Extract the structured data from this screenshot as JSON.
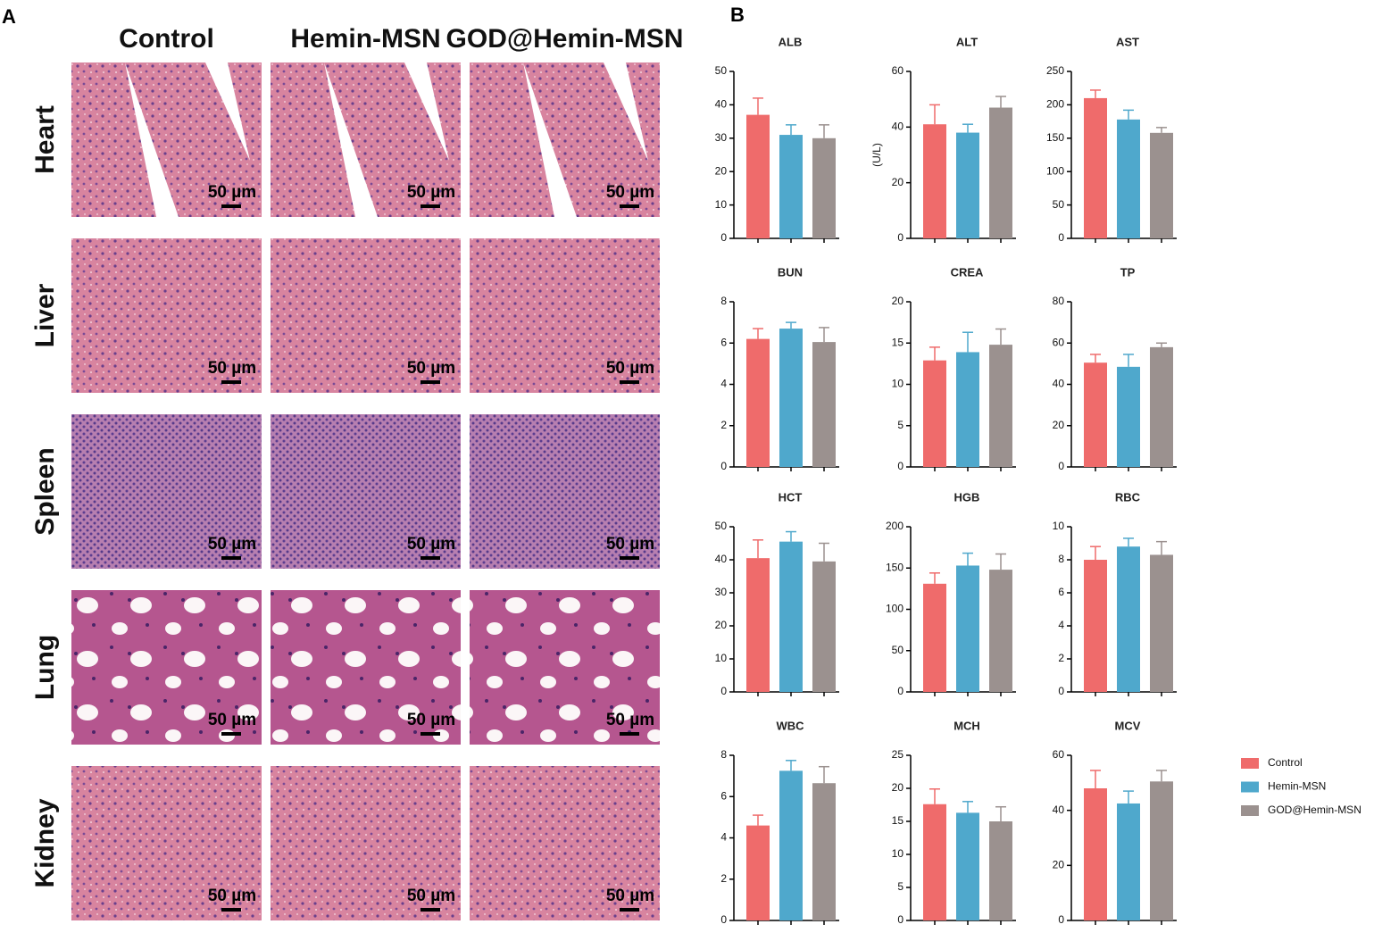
{
  "panels": [
    "A",
    "B"
  ],
  "histology": {
    "columns": [
      "Control",
      "Hemin-MSN",
      "GOD@Hemin-MSN"
    ],
    "rows": [
      "Heart",
      "Liver",
      "Spleen",
      "Lung",
      "Kidney"
    ],
    "scale_bar": "50 µm"
  },
  "legend": [
    {
      "name": "Control",
      "color": "#ef6b6b"
    },
    {
      "name": "Hemin-MSN",
      "color": "#4fa8cc"
    },
    {
      "name": "GOD@Hemin-MSN",
      "color": "#9b918f"
    }
  ],
  "chart_data": [
    {
      "type": "bar",
      "title": "ALB",
      "values": [
        37,
        31,
        30
      ],
      "errors": [
        5,
        3,
        4
      ],
      "ylim": [
        0,
        50
      ],
      "yticks": [
        0,
        10,
        20,
        30,
        40,
        50
      ]
    },
    {
      "type": "bar",
      "title": "ALT",
      "ylabel": "(U/L)",
      "values": [
        41,
        38,
        47
      ],
      "errors": [
        7,
        3,
        4
      ],
      "ylim": [
        0,
        60
      ],
      "yticks": [
        0,
        20,
        40,
        60
      ]
    },
    {
      "type": "bar",
      "title": "AST",
      "values": [
        210,
        178,
        158
      ],
      "errors": [
        12,
        14,
        8
      ],
      "ylim": [
        0,
        250
      ],
      "yticks": [
        0,
        50,
        100,
        150,
        200,
        250
      ]
    },
    {
      "type": "bar",
      "title": "BUN",
      "values": [
        6.2,
        6.7,
        6.05
      ],
      "errors": [
        0.5,
        0.3,
        0.7
      ],
      "ylim": [
        0,
        8
      ],
      "yticks": [
        0,
        2,
        4,
        6,
        8
      ]
    },
    {
      "type": "bar",
      "title": "CREA",
      "values": [
        12.9,
        13.9,
        14.8
      ],
      "errors": [
        1.6,
        2.4,
        1.9
      ],
      "ylim": [
        0,
        20
      ],
      "yticks": [
        0,
        5,
        10,
        15,
        20
      ]
    },
    {
      "type": "bar",
      "title": "TP",
      "values": [
        50.5,
        48.5,
        58
      ],
      "errors": [
        4,
        6,
        2
      ],
      "ylim": [
        0,
        80
      ],
      "yticks": [
        0,
        20,
        40,
        60,
        80
      ]
    },
    {
      "type": "bar",
      "title": "HCT",
      "values": [
        40.5,
        45.5,
        39.5
      ],
      "errors": [
        5.5,
        3,
        5.5
      ],
      "ylim": [
        0,
        50
      ],
      "yticks": [
        0,
        10,
        20,
        30,
        40,
        50
      ]
    },
    {
      "type": "bar",
      "title": "HGB",
      "values": [
        131,
        153,
        148
      ],
      "errors": [
        13,
        15,
        19
      ],
      "ylim": [
        0,
        200
      ],
      "yticks": [
        0,
        50,
        100,
        150,
        200
      ]
    },
    {
      "type": "bar",
      "title": "RBC",
      "values": [
        8.0,
        8.8,
        8.3
      ],
      "errors": [
        0.8,
        0.5,
        0.8
      ],
      "ylim": [
        0,
        10
      ],
      "yticks": [
        0,
        2,
        4,
        6,
        8,
        10
      ]
    },
    {
      "type": "bar",
      "title": "WBC",
      "values": [
        4.6,
        7.25,
        6.65
      ],
      "errors": [
        0.5,
        0.5,
        0.8
      ],
      "ylim": [
        0,
        8
      ],
      "yticks": [
        0,
        2,
        4,
        6,
        8
      ]
    },
    {
      "type": "bar",
      "title": "MCH",
      "values": [
        17.6,
        16.3,
        15.0
      ],
      "errors": [
        2.3,
        1.7,
        2.2
      ],
      "ylim": [
        0,
        25
      ],
      "yticks": [
        0,
        5,
        10,
        15,
        20,
        25
      ]
    },
    {
      "type": "bar",
      "title": "MCV",
      "values": [
        48,
        42.5,
        50.5
      ],
      "errors": [
        6.5,
        4.5,
        4
      ],
      "ylim": [
        0,
        60
      ],
      "yticks": [
        0,
        20,
        40,
        60
      ]
    }
  ]
}
